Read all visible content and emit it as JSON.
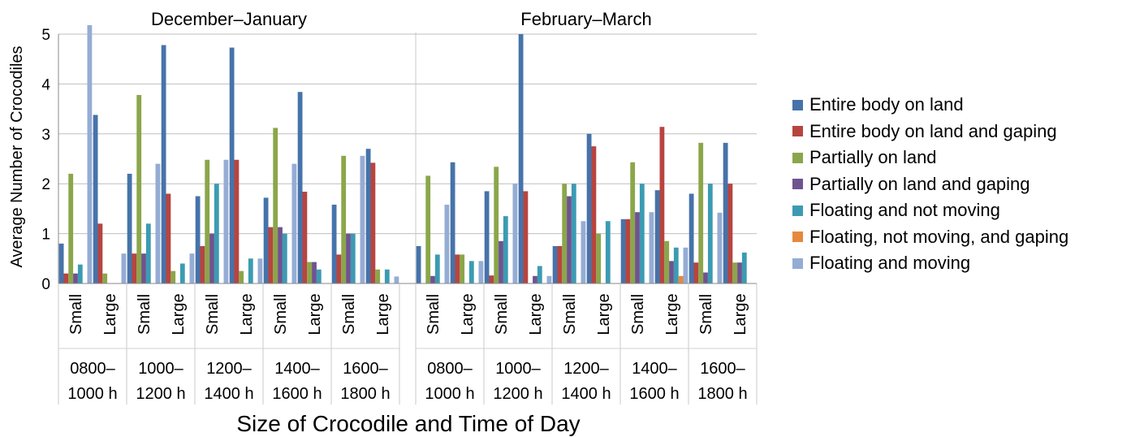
{
  "chart_data": {
    "type": "bar",
    "xlabel": "Size of Crocodile and Time of Day",
    "ylabel": "Average Number of Crocodiles",
    "ylim": [
      0,
      5
    ],
    "yticks": [
      "0",
      "1",
      "2",
      "3",
      "4",
      "5"
    ],
    "grid": true,
    "legend_position": "right",
    "sizes": [
      "Small",
      "Large"
    ],
    "time_periods": [
      [
        "0800–",
        "1000 h"
      ],
      [
        "1000–",
        "1200 h"
      ],
      [
        "1200–",
        "1400 h"
      ],
      [
        "1400–",
        "1600 h"
      ],
      [
        "1600–",
        "1800 h"
      ]
    ],
    "series": [
      {
        "name": "Entire body on land",
        "color": "#4673aa"
      },
      {
        "name": "Entire body on land and gaping",
        "color": "#b8443f"
      },
      {
        "name": "Partially on land",
        "color": "#8ba64a"
      },
      {
        "name": "Partially on land and gaping",
        "color": "#6f538f"
      },
      {
        "name": "Floating and not moving",
        "color": "#3c9bb2"
      },
      {
        "name": "Floating, not moving, and gaping",
        "color": "#e5893d"
      },
      {
        "name": "Floating and moving",
        "color": "#95acd4"
      }
    ],
    "panels": [
      {
        "title": "December–January",
        "groups": [
          [
            0.8,
            0.2,
            2.2,
            0.2,
            0.38,
            0,
            5.18
          ],
          [
            3.38,
            1.2,
            0.2,
            0,
            0,
            0,
            0.6
          ],
          [
            2.2,
            0.6,
            3.78,
            0.6,
            1.2,
            0,
            2.4
          ],
          [
            4.78,
            1.8,
            0.25,
            0,
            0.4,
            0,
            0.6
          ],
          [
            1.75,
            0.75,
            2.48,
            1.0,
            2.0,
            0,
            2.48
          ],
          [
            4.73,
            2.48,
            0.25,
            0,
            0.5,
            0,
            0.5
          ],
          [
            1.72,
            1.13,
            3.12,
            1.13,
            1.0,
            0,
            2.4
          ],
          [
            3.84,
            1.84,
            0.43,
            0.43,
            0.28,
            0,
            0
          ],
          [
            1.58,
            0.58,
            2.56,
            1.0,
            1.0,
            0,
            2.56
          ],
          [
            2.7,
            2.42,
            0.28,
            0,
            0.28,
            0,
            0.14
          ]
        ]
      },
      {
        "title": "February–March",
        "groups": [
          [
            0.75,
            0,
            2.16,
            0.15,
            0.58,
            0,
            1.58
          ],
          [
            2.43,
            0.58,
            0.58,
            0,
            0.45,
            0,
            0.45
          ],
          [
            1.85,
            0.16,
            2.34,
            0.85,
            1.35,
            0,
            2.0
          ],
          [
            5.0,
            1.85,
            0,
            0.15,
            0.35,
            0,
            0.15
          ],
          [
            0.75,
            0.75,
            2.0,
            1.75,
            2.0,
            0,
            1.25
          ],
          [
            3.0,
            2.75,
            1.0,
            0,
            1.25,
            0,
            0
          ],
          [
            1.29,
            1.29,
            2.43,
            1.43,
            2.0,
            0,
            1.43
          ],
          [
            1.87,
            3.14,
            0.85,
            0.45,
            0.72,
            0.15,
            0.72
          ],
          [
            1.8,
            0.42,
            2.82,
            0.22,
            2.0,
            0,
            1.42
          ],
          [
            2.82,
            2.0,
            0.42,
            0.42,
            0.62,
            0,
            0
          ]
        ]
      }
    ]
  }
}
